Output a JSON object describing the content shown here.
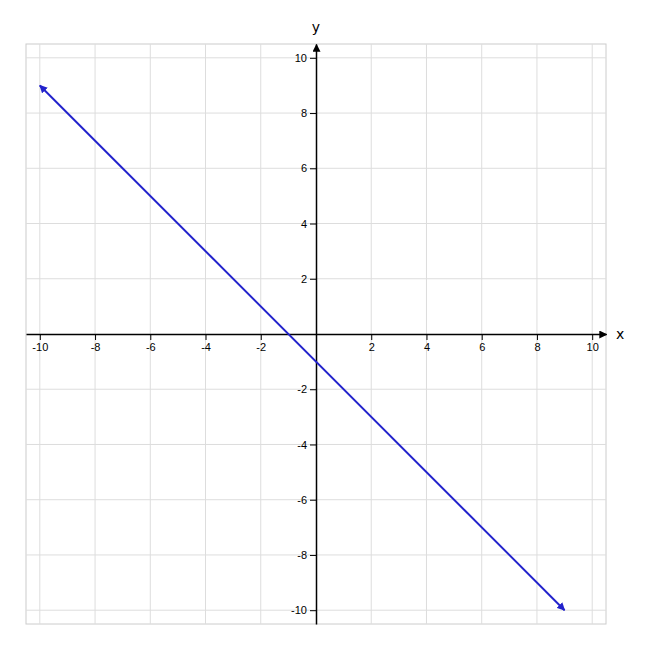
{
  "chart_data": {
    "type": "line",
    "xlabel": "x",
    "ylabel": "y",
    "x": [
      -10,
      9
    ],
    "values": [
      9,
      -10
    ],
    "color": "#2222cc",
    "xlim": [
      -10.5,
      10.5
    ],
    "ylim": [
      -10.5,
      10.5
    ],
    "xticks": [
      -10,
      -8,
      -6,
      -4,
      -2,
      2,
      4,
      6,
      8,
      10
    ],
    "yticks": [
      -10,
      -8,
      -6,
      -4,
      -2,
      2,
      4,
      6,
      8,
      10
    ],
    "grid": true
  }
}
